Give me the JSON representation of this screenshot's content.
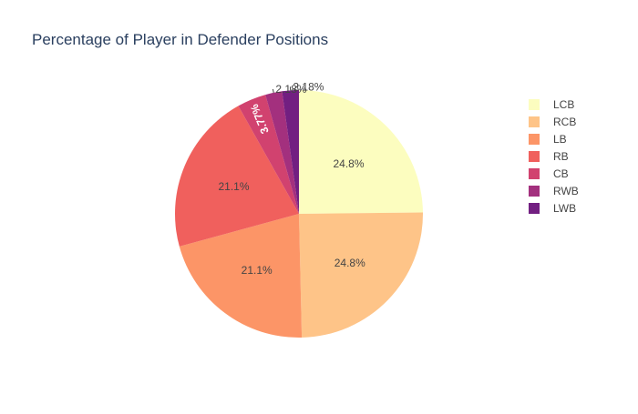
{
  "chart_data": {
    "type": "pie",
    "title": "Percentage of Player in Defender Positions",
    "categories": [
      "LCB",
      "RCB",
      "LB",
      "RB",
      "CB",
      "RWB",
      "LWB"
    ],
    "values": [
      24.8,
      24.8,
      21.1,
      21.1,
      3.77,
      2.18,
      2.18
    ],
    "value_labels": [
      "24.8%",
      "24.8%",
      "21.1%",
      "21.1%",
      "3.77%",
      "2.18%",
      "2.18%"
    ],
    "colors": [
      "#fcfdbf",
      "#fec488",
      "#fc9567",
      "#f0605d",
      "#d1426f",
      "#a3307e",
      "#721f81"
    ],
    "label_colors": [
      "#444444",
      "#444444",
      "#444444",
      "#444444",
      "#ffffff",
      "#444444",
      "#444444"
    ],
    "legend_position": "right",
    "direction": "clockwise",
    "start_angle": "top"
  }
}
